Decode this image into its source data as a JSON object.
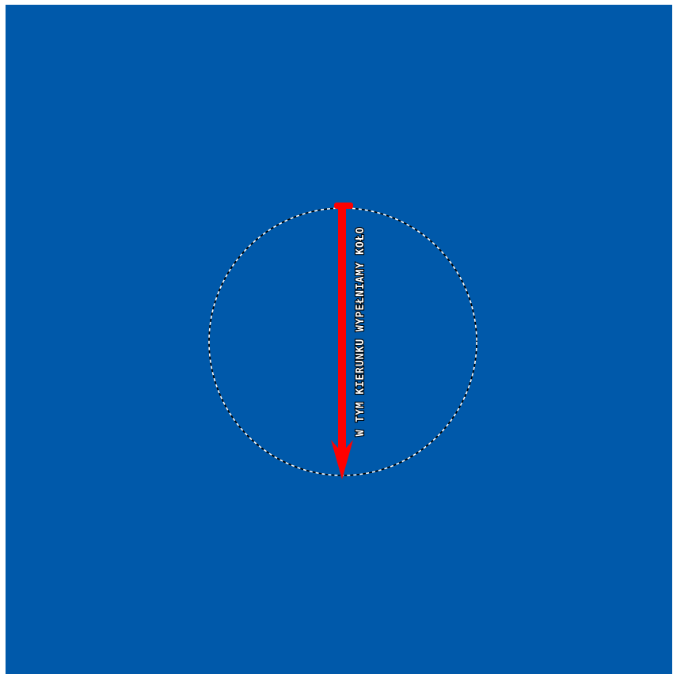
{
  "canvas": {
    "background_color": "#0059aa"
  },
  "selection": {
    "shape": "circle",
    "style": "marching-ants",
    "stroke_colors": [
      "#000000",
      "#ffffff"
    ]
  },
  "gradient_arrow": {
    "color": "#ff0000",
    "direction": "down"
  },
  "annotation": {
    "text": "W TYM KIERUNKU WYPEŁNIAMY KOŁO"
  }
}
